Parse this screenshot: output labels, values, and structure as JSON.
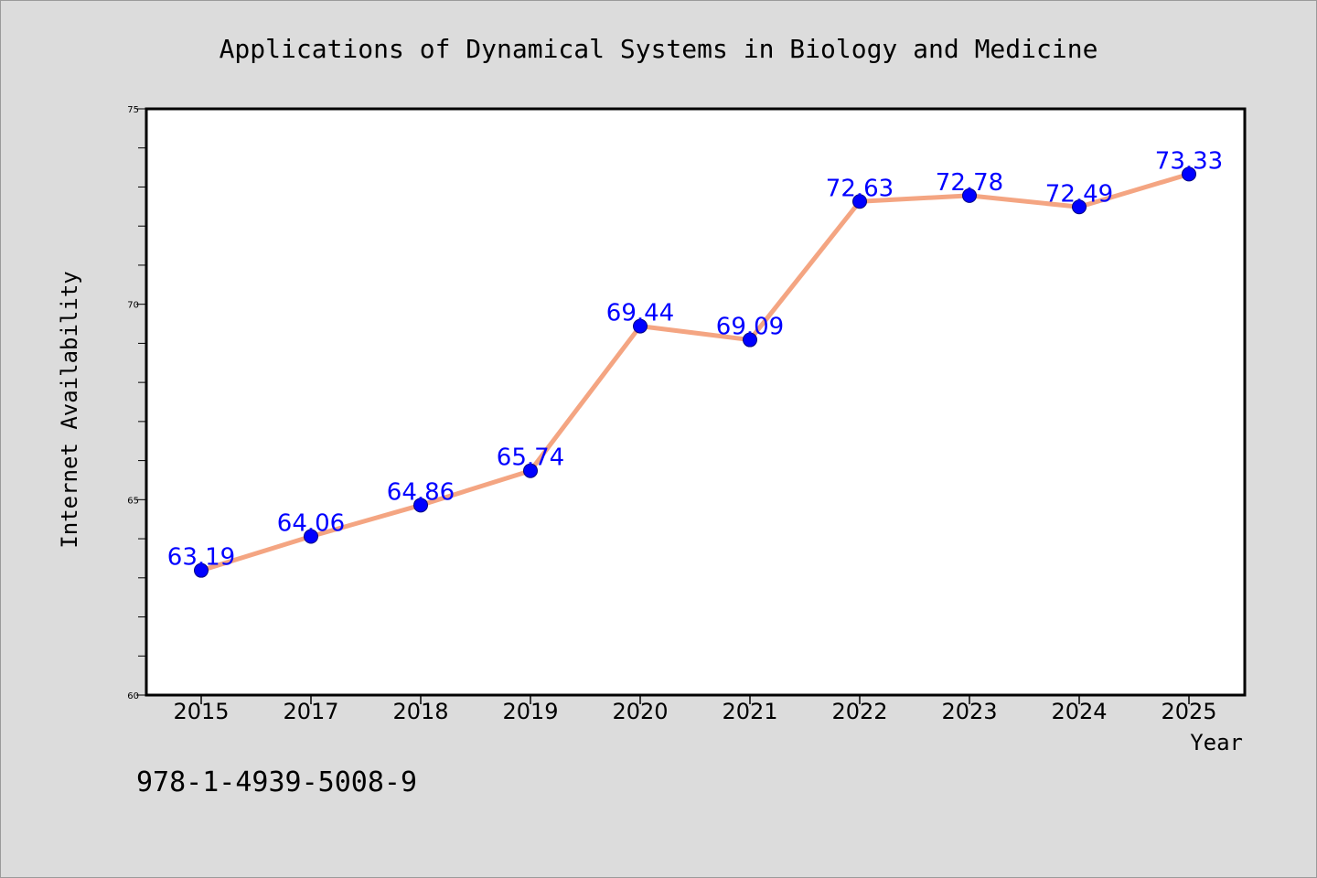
{
  "chart_data": {
    "type": "line",
    "title": "Applications of Dynamical Systems in Biology and Medicine",
    "xlabel": "Year",
    "ylabel": "Internet Availability",
    "categories": [
      "2015",
      "2017",
      "2018",
      "2019",
      "2020",
      "2021",
      "2022",
      "2023",
      "2024",
      "2025"
    ],
    "series": [
      {
        "values": [
          63.19,
          64.06,
          64.86,
          65.74,
          69.44,
          69.09,
          72.63,
          72.78,
          72.49,
          73.33
        ],
        "line_color": "#f4a582",
        "marker_color": "#0000ff"
      }
    ],
    "data_labels": [
      "63.19",
      "64.06",
      "64.86",
      "65.74",
      "69.44",
      "69.09",
      "72.63",
      "72.78",
      "72.49",
      "73.33"
    ],
    "ylim": [
      60,
      75
    ],
    "yticks": [
      "60",
      "65",
      "70",
      "75"
    ],
    "grid": false,
    "legend": "none",
    "label_color": "#0000ff",
    "background_color": "#dcdcdc",
    "plot_background_color": "#ffffff"
  },
  "footer": {
    "isbn": "978-1-4939-5008-9"
  }
}
